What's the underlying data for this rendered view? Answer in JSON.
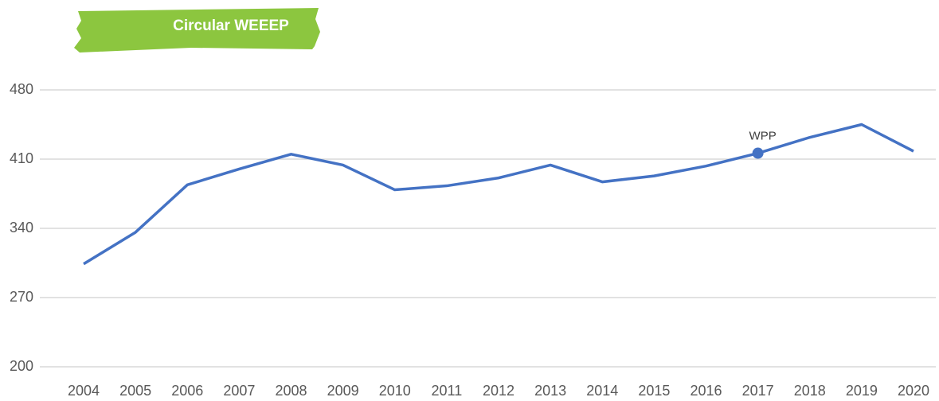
{
  "chart_data": {
    "type": "line",
    "title": "Circular WEEEP",
    "categories": [
      "2004",
      "2005",
      "2006",
      "2007",
      "2008",
      "2009",
      "2010",
      "2011",
      "2012",
      "2013",
      "2014",
      "2015",
      "2016",
      "2017",
      "2018",
      "2019",
      "2020"
    ],
    "series": [
      {
        "color": "#4472c4",
        "values": [
          304,
          336,
          384,
          400,
          415,
          404,
          379,
          383,
          391,
          404,
          387,
          393,
          403,
          416,
          432,
          445,
          418
        ]
      }
    ],
    "ylim": [
      200,
      480
    ],
    "yticks": [
      200,
      270,
      340,
      410,
      480
    ],
    "grid": true,
    "annotations": [
      {
        "text": "WPP",
        "category": "2017"
      }
    ]
  }
}
